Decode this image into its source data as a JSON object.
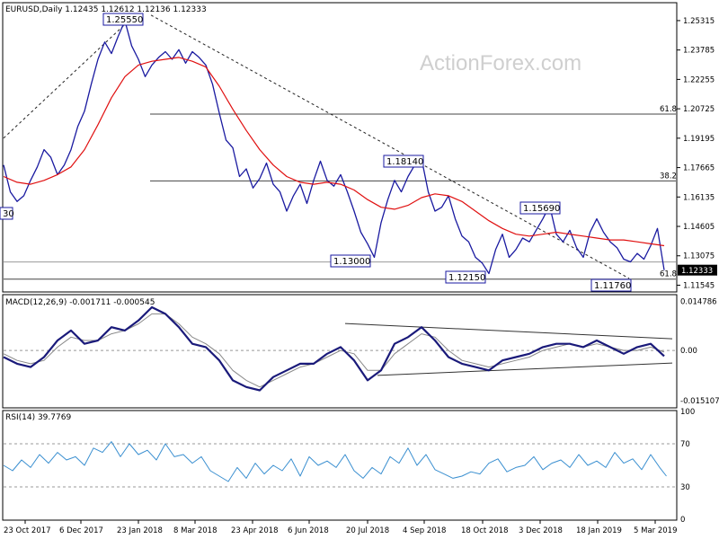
{
  "watermark": "ActionForex.com",
  "colors": {
    "price": "#1a1aa0",
    "ma": "#e01010",
    "macd": "#1a1a7a",
    "signal": "#888888",
    "rsi": "#3a8fd0",
    "trend": "#333333",
    "box_border": "#1a1aa0"
  },
  "chart_data": [
    {
      "type": "line",
      "title": "EURUSD,Daily  1.12435 1.12612 1.12136 1.12333",
      "ylim": [
        1.1124,
        1.262
      ],
      "y_ticks": [
        "1.25315",
        "1.23785",
        "1.22255",
        "1.20725",
        "1.19195",
        "1.17665",
        "1.16135",
        "1.14605",
        "1.13075",
        "1.11545"
      ],
      "current_price_label": "1.12333",
      "x_labels": [
        "23 Oct 2017",
        "6 Dec 2017",
        "23 Jan 2018",
        "8 Mar 2018",
        "23 Apr 2018",
        "6 Jun 2018",
        "20 Jul 2018",
        "4 Sep 2018",
        "18 Oct 2018",
        "3 Dec 2018",
        "18 Jan 2019",
        "5 Mar 2019"
      ],
      "fib_levels": [
        {
          "label": "61.8",
          "value": 1.2045
        },
        {
          "label": "38.2",
          "value": 1.1697
        },
        {
          "label": "61.8",
          "value": 1.1186
        }
      ],
      "annotations": [
        "30",
        "1.25550",
        "1.18140",
        "1.15690",
        "1.13000",
        "1.12150",
        "1.11760"
      ],
      "series": [
        {
          "key": "price",
          "x": [
            0,
            6,
            12,
            18,
            24,
            30,
            36,
            42,
            48,
            54,
            60,
            66,
            72,
            78,
            84,
            90,
            96,
            102,
            108,
            114,
            120,
            126,
            132,
            138,
            144,
            150,
            156,
            162,
            168,
            174,
            180,
            186,
            192,
            198,
            204,
            210,
            216,
            222,
            228,
            234,
            240,
            246,
            252,
            258,
            264,
            270,
            276,
            282,
            288,
            294,
            300,
            306,
            312,
            318,
            324,
            330,
            336,
            342,
            348,
            354,
            360,
            366,
            372,
            378,
            384,
            390,
            396,
            402,
            408,
            414,
            420,
            426,
            432,
            438,
            444,
            450,
            456,
            462,
            468,
            474,
            480,
            486,
            492,
            498,
            504,
            510,
            516,
            522,
            528,
            534,
            540,
            546,
            552,
            558,
            564,
            570,
            576,
            582,
            588
          ],
          "values": [
            1.178,
            1.164,
            1.159,
            1.162,
            1.17,
            1.177,
            1.186,
            1.182,
            1.173,
            1.178,
            1.186,
            1.198,
            1.206,
            1.22,
            1.233,
            1.242,
            1.236,
            1.245,
            1.253,
            1.24,
            1.233,
            1.224,
            1.23,
            1.234,
            1.237,
            1.233,
            1.238,
            1.231,
            1.237,
            1.234,
            1.23,
            1.22,
            1.205,
            1.191,
            1.187,
            1.172,
            1.176,
            1.166,
            1.171,
            1.179,
            1.168,
            1.164,
            1.154,
            1.162,
            1.168,
            1.158,
            1.17,
            1.18,
            1.17,
            1.167,
            1.173,
            1.164,
            1.154,
            1.143,
            1.137,
            1.13,
            1.148,
            1.16,
            1.17,
            1.164,
            1.172,
            1.178,
            1.1814,
            1.164,
            1.154,
            1.156,
            1.162,
            1.15,
            1.141,
            1.138,
            1.13,
            1.127,
            1.1215,
            1.134,
            1.142,
            1.13,
            1.134,
            1.14,
            1.138,
            1.144,
            1.15,
            1.1569,
            1.142,
            1.138,
            1.144,
            1.135,
            1.13,
            1.143,
            1.15,
            1.143,
            1.138,
            1.135,
            1.129,
            1.1276,
            1.132,
            1.129,
            1.136,
            1.145,
            1.1233
          ]
        },
        {
          "key": "ma",
          "x": [
            0,
            12,
            24,
            36,
            48,
            60,
            72,
            84,
            96,
            108,
            120,
            132,
            144,
            156,
            168,
            180,
            192,
            204,
            216,
            228,
            240,
            252,
            264,
            276,
            288,
            300,
            312,
            324,
            336,
            348,
            360,
            372,
            384,
            396,
            408,
            420,
            432,
            444,
            456,
            468,
            480,
            492,
            504,
            516,
            528,
            540,
            552,
            564,
            576,
            588
          ],
          "values": [
            1.172,
            1.169,
            1.168,
            1.17,
            1.173,
            1.177,
            1.186,
            1.199,
            1.213,
            1.224,
            1.23,
            1.232,
            1.233,
            1.234,
            1.232,
            1.229,
            1.219,
            1.207,
            1.196,
            1.186,
            1.178,
            1.172,
            1.169,
            1.168,
            1.169,
            1.168,
            1.165,
            1.16,
            1.156,
            1.155,
            1.157,
            1.161,
            1.163,
            1.162,
            1.159,
            1.154,
            1.149,
            1.145,
            1.142,
            1.141,
            1.142,
            1.143,
            1.142,
            1.141,
            1.14,
            1.139,
            1.139,
            1.138,
            1.137,
            1.136
          ]
        }
      ]
    },
    {
      "type": "line",
      "title": "MACD(12,26,9) -0.001711 -0.000545",
      "ylim": [
        -0.017,
        0.0165
      ],
      "y_ticks": [
        "0.014786",
        "0.00",
        "-0.015107"
      ],
      "series": [
        {
          "key": "macd",
          "x": [
            0,
            12,
            24,
            36,
            48,
            60,
            72,
            84,
            96,
            108,
            120,
            132,
            144,
            156,
            168,
            180,
            192,
            204,
            216,
            228,
            240,
            252,
            264,
            276,
            288,
            300,
            312,
            324,
            336,
            348,
            360,
            372,
            384,
            396,
            408,
            420,
            432,
            444,
            456,
            468,
            480,
            492,
            504,
            516,
            528,
            540,
            552,
            564,
            576,
            588
          ],
          "values": [
            -0.002,
            -0.004,
            -0.005,
            -0.002,
            0.003,
            0.006,
            0.002,
            0.003,
            0.007,
            0.006,
            0.009,
            0.013,
            0.011,
            0.007,
            0.002,
            0.001,
            -0.003,
            -0.009,
            -0.011,
            -0.012,
            -0.008,
            -0.006,
            -0.004,
            -0.004,
            -0.001,
            0.001,
            -0.003,
            -0.009,
            -0.006,
            0.002,
            0.004,
            0.007,
            0.003,
            -0.002,
            -0.004,
            -0.005,
            -0.006,
            -0.003,
            -0.002,
            -0.001,
            0.001,
            0.002,
            0.002,
            0.001,
            0.003,
            0.001,
            -0.001,
            0.001,
            0.002,
            -0.0017
          ]
        },
        {
          "key": "signal",
          "x": [
            0,
            12,
            24,
            36,
            48,
            60,
            72,
            84,
            96,
            108,
            120,
            132,
            144,
            156,
            168,
            180,
            192,
            204,
            216,
            228,
            240,
            252,
            264,
            276,
            288,
            300,
            312,
            324,
            336,
            348,
            360,
            372,
            384,
            396,
            408,
            420,
            432,
            444,
            456,
            468,
            480,
            492,
            504,
            516,
            528,
            540,
            552,
            564,
            576,
            588
          ],
          "values": [
            -0.001,
            -0.003,
            -0.004,
            -0.003,
            0.001,
            0.004,
            0.003,
            0.003,
            0.005,
            0.006,
            0.008,
            0.011,
            0.011,
            0.008,
            0.004,
            0.002,
            -0.001,
            -0.006,
            -0.009,
            -0.011,
            -0.009,
            -0.007,
            -0.005,
            -0.004,
            -0.002,
            0.0,
            -0.001,
            -0.006,
            -0.006,
            -0.001,
            0.002,
            0.005,
            0.004,
            0.0,
            -0.003,
            -0.004,
            -0.005,
            -0.004,
            -0.003,
            -0.002,
            0.0,
            0.001,
            0.002,
            0.001,
            0.002,
            0.001,
            0.0,
            0.0,
            0.001,
            -0.0005
          ]
        }
      ],
      "trendlines": [
        {
          "x1": 384,
          "y1": 0.0081,
          "x2": 748,
          "y2": 0.0035
        },
        {
          "x1": 420,
          "y1": -0.0075,
          "x2": 748,
          "y2": -0.0038
        }
      ]
    },
    {
      "type": "line",
      "title": "RSI(14) 39.7769",
      "ylim": [
        0,
        100
      ],
      "y_ticks": [
        100,
        70,
        30,
        0
      ],
      "levels": [
        70,
        30
      ],
      "series": [
        {
          "key": "rsi",
          "x": [
            0,
            8,
            16,
            24,
            32,
            40,
            48,
            56,
            64,
            72,
            80,
            88,
            96,
            104,
            112,
            120,
            128,
            136,
            144,
            152,
            160,
            168,
            176,
            184,
            192,
            200,
            208,
            216,
            224,
            232,
            240,
            248,
            256,
            264,
            272,
            280,
            288,
            296,
            304,
            312,
            320,
            328,
            336,
            344,
            352,
            360,
            368,
            376,
            384,
            392,
            400,
            408,
            416,
            424,
            432,
            440,
            448,
            456,
            464,
            472,
            480,
            488,
            496,
            504,
            512,
            520,
            528,
            536,
            544,
            552,
            560,
            568,
            576,
            584,
            590
          ],
          "values": [
            50,
            45,
            55,
            48,
            60,
            52,
            62,
            55,
            58,
            50,
            66,
            62,
            72,
            58,
            70,
            60,
            64,
            55,
            70,
            58,
            60,
            52,
            58,
            45,
            40,
            35,
            48,
            38,
            52,
            42,
            50,
            45,
            56,
            40,
            58,
            50,
            54,
            48,
            60,
            45,
            38,
            48,
            42,
            58,
            52,
            66,
            50,
            60,
            46,
            42,
            38,
            40,
            44,
            42,
            52,
            56,
            44,
            48,
            50,
            58,
            46,
            52,
            55,
            48,
            60,
            50,
            54,
            48,
            62,
            52,
            56,
            46,
            60,
            48,
            40
          ]
        }
      ]
    }
  ]
}
